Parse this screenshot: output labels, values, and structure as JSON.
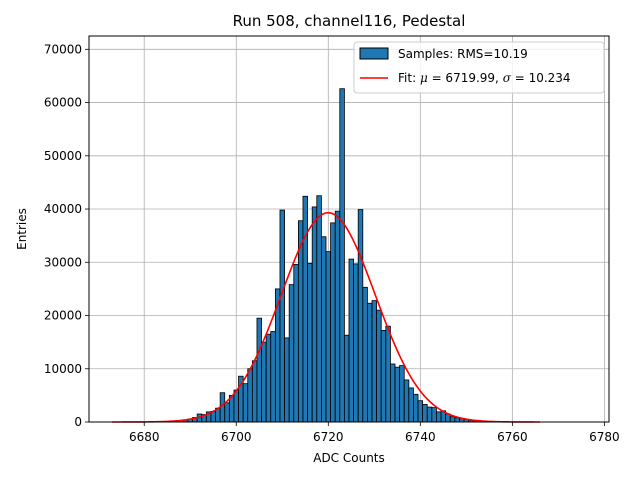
{
  "chart_data": {
    "type": "bar",
    "title": "Run 508, channel116, Pedestal",
    "xlabel": "ADC Counts",
    "ylabel": "Entries",
    "xlim": [
      6668,
      6781
    ],
    "ylim": [
      0,
      72500
    ],
    "xticks": [
      6680,
      6700,
      6720,
      6740,
      6760,
      6780
    ],
    "yticks": [
      0,
      10000,
      20000,
      30000,
      40000,
      50000,
      60000,
      70000
    ],
    "grid": true,
    "legend_position": "top-right",
    "legend": [
      {
        "label": "Samples: RMS=10.19",
        "kind": "patch"
      },
      {
        "label_prefix": "Fit: ",
        "mu_symbol": "μ",
        "mu_text": " = 6719.99, ",
        "sigma_symbol": "σ",
        "sigma_text": " = 10.234",
        "kind": "line"
      }
    ],
    "histogram": {
      "color": "#1f77b4",
      "edgecolor": "#000000",
      "x": [
        6685,
        6686,
        6687,
        6688,
        6689,
        6690,
        6691,
        6692,
        6693,
        6694,
        6695,
        6696,
        6697,
        6698,
        6699,
        6700,
        6701,
        6702,
        6703,
        6704,
        6705,
        6706,
        6707,
        6708,
        6709,
        6710,
        6711,
        6712,
        6713,
        6714,
        6715,
        6716,
        6717,
        6718,
        6719,
        6720,
        6721,
        6722,
        6723,
        6724,
        6725,
        6726,
        6727,
        6728,
        6729,
        6730,
        6731,
        6732,
        6733,
        6734,
        6735,
        6736,
        6737,
        6738,
        6739,
        6740,
        6741,
        6742,
        6743,
        6744,
        6745,
        6746,
        6747,
        6748,
        6749,
        6750,
        6751,
        6752,
        6753,
        6754,
        6755
      ],
      "values": [
        50,
        80,
        150,
        250,
        400,
        550,
        850,
        1500,
        1400,
        1900,
        2000,
        2600,
        5500,
        3600,
        5000,
        6000,
        8600,
        7200,
        10000,
        11500,
        19500,
        15000,
        16500,
        17000,
        25000,
        39800,
        15800,
        25800,
        29600,
        37800,
        42400,
        29800,
        40400,
        42500,
        34800,
        32000,
        37400,
        39600,
        62600,
        16300,
        30600,
        29700,
        39900,
        25300,
        22300,
        22800,
        21000,
        17200,
        18000,
        10900,
        10300,
        10600,
        7900,
        6400,
        5200,
        4000,
        3300,
        2800,
        2700,
        1900,
        2100,
        1500,
        1000,
        800,
        600,
        450,
        300,
        200,
        120,
        80,
        40
      ]
    },
    "fit": {
      "color": "#ff0000",
      "mu": 6719.99,
      "sigma": 10.234,
      "amplitude": 39300,
      "x_range": [
        6673,
        6766
      ]
    }
  }
}
